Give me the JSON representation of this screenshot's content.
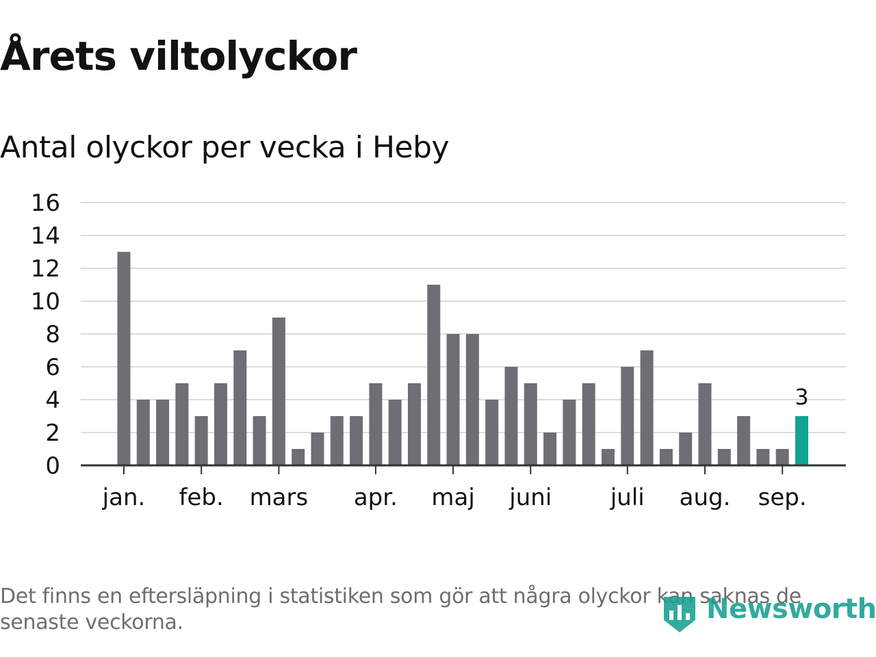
{
  "title": "Årets viltolyckor",
  "subtitle": "Antal olyckor per vecka i Heby",
  "footnote": "Det finns en eftersläpning i statistiken som gör att några olyckor kan saknas de senaste veckorna.",
  "logo": {
    "text": "Newsworthy",
    "icon": "bar-chart-badge-icon"
  },
  "colors": {
    "bar": "#6f6e73",
    "highlight": "#12a394",
    "gridline": "#dcdcdc",
    "axis": "#333333",
    "text": "#121212",
    "footnote": "#6e6e6e",
    "brand": "#189f91"
  },
  "chart_data": {
    "type": "bar",
    "title": "Årets viltolyckor",
    "subtitle": "Antal olyckor per vecka i Heby",
    "xlabel": "",
    "ylabel": "",
    "ylim": [
      0,
      16
    ],
    "yticks": [
      0,
      2,
      4,
      6,
      8,
      10,
      12,
      14,
      16
    ],
    "grid": true,
    "legend": "none",
    "x_tick_labels": [
      {
        "label": "jan.",
        "week_index": 0
      },
      {
        "label": "feb.",
        "week_index": 4
      },
      {
        "label": "mars",
        "week_index": 8
      },
      {
        "label": "apr.",
        "week_index": 13
      },
      {
        "label": "maj",
        "week_index": 17
      },
      {
        "label": "juni",
        "week_index": 21
      },
      {
        "label": "juli",
        "week_index": 26
      },
      {
        "label": "aug.",
        "week_index": 30
      },
      {
        "label": "sep.",
        "week_index": 34
      }
    ],
    "values": [
      13,
      4,
      4,
      5,
      3,
      5,
      7,
      3,
      9,
      1,
      2,
      3,
      3,
      5,
      4,
      5,
      11,
      8,
      8,
      4,
      6,
      5,
      2,
      4,
      5,
      1,
      6,
      7,
      1,
      2,
      5,
      1,
      3,
      1,
      1,
      3
    ],
    "highlight_index": 35,
    "data_labels": [
      {
        "index": 35,
        "text": "3"
      }
    ]
  }
}
